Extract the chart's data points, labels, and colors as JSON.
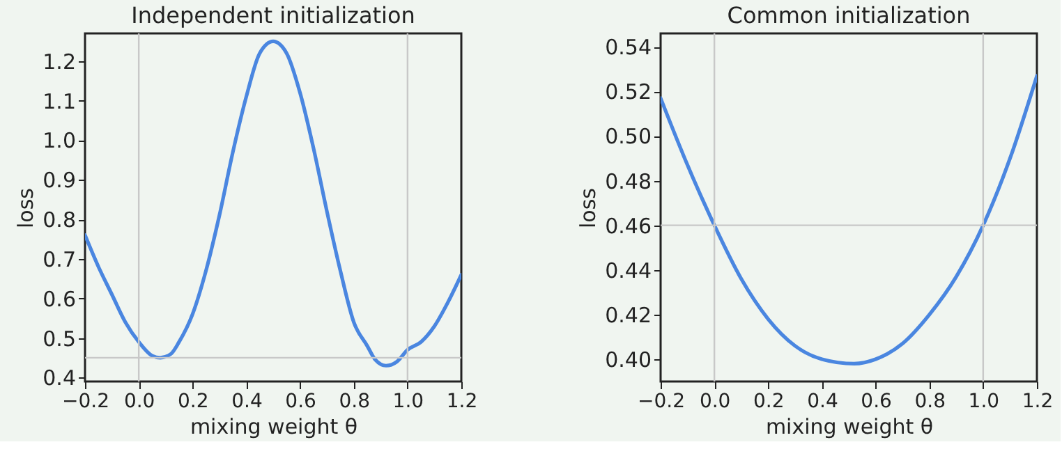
{
  "chart_data": [
    {
      "type": "line",
      "title": "Independent initialization",
      "xlabel": "mixing weight θ",
      "ylabel": "loss",
      "x": [
        -0.2,
        -0.15,
        -0.1,
        -0.05,
        0,
        0.05,
        0.08,
        0.12,
        0.15,
        0.2,
        0.25,
        0.3,
        0.35,
        0.4,
        0.45,
        0.5,
        0.55,
        0.6,
        0.65,
        0.7,
        0.75,
        0.8,
        0.85,
        0.88,
        0.92,
        0.96,
        1.0,
        1.05,
        1.1,
        1.15,
        1.2
      ],
      "series": [
        {
          "color": "#4a86e0",
          "values": [
            0.76,
            0.68,
            0.61,
            0.54,
            0.49,
            0.455,
            0.45,
            0.46,
            0.49,
            0.56,
            0.67,
            0.81,
            0.97,
            1.11,
            1.22,
            1.25,
            1.22,
            1.12,
            0.98,
            0.82,
            0.67,
            0.54,
            0.48,
            0.445,
            0.43,
            0.44,
            0.47,
            0.49,
            0.53,
            0.59,
            0.66
          ]
        }
      ],
      "xlim": [
        -0.2,
        1.2
      ],
      "ylim": [
        0.39,
        1.27
      ],
      "xticks": [
        {
          "value": -0.2,
          "label": "−0.2"
        },
        {
          "value": 0,
          "label": "0.0"
        },
        {
          "value": 0.2,
          "label": "0.2"
        },
        {
          "value": 0.4,
          "label": "0.4"
        },
        {
          "value": 0.6,
          "label": "0.6"
        },
        {
          "value": 0.8,
          "label": "0.8"
        },
        {
          "value": 1.0,
          "label": "1.0"
        },
        {
          "value": 1.2,
          "label": "1.2"
        }
      ],
      "yticks": [
        {
          "value": 0.4,
          "label": "0.4"
        },
        {
          "value": 0.5,
          "label": "0.5"
        },
        {
          "value": 0.6,
          "label": "0.6"
        },
        {
          "value": 0.7,
          "label": "0.7"
        },
        {
          "value": 0.8,
          "label": "0.8"
        },
        {
          "value": 0.9,
          "label": "0.9"
        },
        {
          "value": 1.0,
          "label": "1.0"
        },
        {
          "value": 1.1,
          "label": "1.1"
        },
        {
          "value": 1.2,
          "label": "1.2"
        }
      ],
      "ref_lines": [
        {
          "axis": "x",
          "value": 0,
          "color": "#c8c8c8"
        },
        {
          "axis": "x",
          "value": 1,
          "color": "#c8c8c8"
        },
        {
          "axis": "y",
          "value": 0.45,
          "color": "#c8c8c8"
        }
      ],
      "grid": false,
      "legend": false
    },
    {
      "type": "line",
      "title": "Common initialization",
      "xlabel": "mixing weight θ",
      "ylabel": "loss",
      "x": [
        -0.2,
        -0.1,
        0,
        0.1,
        0.2,
        0.3,
        0.4,
        0.52,
        0.6,
        0.7,
        0.8,
        0.9,
        1.0,
        1.1,
        1.2
      ],
      "series": [
        {
          "color": "#4a86e0",
          "values": [
            0.517,
            0.487,
            0.46,
            0.436,
            0.418,
            0.406,
            0.4,
            0.398,
            0.4,
            0.407,
            0.42,
            0.437,
            0.46,
            0.49,
            0.527
          ]
        }
      ],
      "xlim": [
        -0.2,
        1.2
      ],
      "ylim": [
        0.39,
        0.546
      ],
      "xticks": [
        {
          "value": -0.2,
          "label": "−0.2"
        },
        {
          "value": 0,
          "label": "0.0"
        },
        {
          "value": 0.2,
          "label": "0.2"
        },
        {
          "value": 0.4,
          "label": "0.4"
        },
        {
          "value": 0.6,
          "label": "0.6"
        },
        {
          "value": 0.8,
          "label": "0.8"
        },
        {
          "value": 1.0,
          "label": "1.0"
        },
        {
          "value": 1.2,
          "label": "1.2"
        }
      ],
      "yticks": [
        {
          "value": 0.4,
          "label": "0.40"
        },
        {
          "value": 0.42,
          "label": "0.42"
        },
        {
          "value": 0.44,
          "label": "0.44"
        },
        {
          "value": 0.46,
          "label": "0.46"
        },
        {
          "value": 0.48,
          "label": "0.48"
        },
        {
          "value": 0.5,
          "label": "0.50"
        },
        {
          "value": 0.52,
          "label": "0.52"
        },
        {
          "value": 0.54,
          "label": "0.54"
        }
      ],
      "ref_lines": [
        {
          "axis": "x",
          "value": 0,
          "color": "#c8c8c8"
        },
        {
          "axis": "x",
          "value": 1,
          "color": "#c8c8c8"
        },
        {
          "axis": "y",
          "value": 0.46,
          "color": "#c8c8c8"
        }
      ],
      "grid": false,
      "legend": false
    }
  ]
}
